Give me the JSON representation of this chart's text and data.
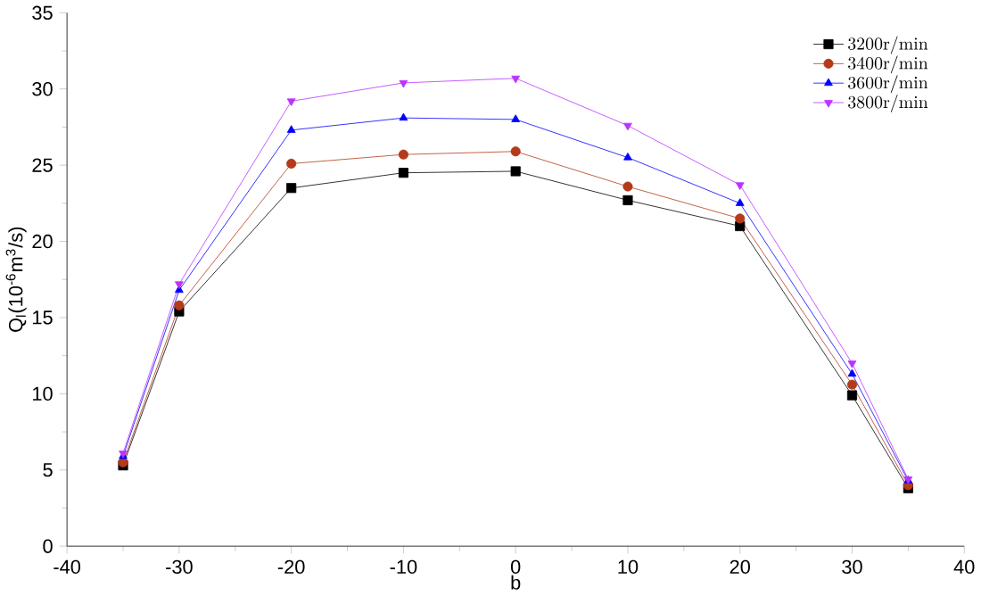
{
  "chart_data": {
    "type": "line",
    "xlabel": "b",
    "ylabel": "Q$_{l}$(10$^{-6}$m$^{3}$/s)",
    "x": [
      -35,
      -30,
      -20,
      -10,
      0,
      10,
      20,
      30,
      35
    ],
    "xlim": [
      -40,
      40
    ],
    "xticks": [
      -40,
      -30,
      -20,
      -10,
      0,
      10,
      20,
      30,
      40
    ],
    "ylim": [
      0,
      35
    ],
    "yticks": [
      0,
      5,
      10,
      15,
      20,
      25,
      30,
      35
    ],
    "grid": false,
    "legend": "top right",
    "series": [
      {
        "name": "3200r/min",
        "color": "#000000",
        "marker": "square",
        "values": [
          5.3,
          15.4,
          23.5,
          24.5,
          24.6,
          22.7,
          21.0,
          9.9,
          3.8
        ]
      },
      {
        "name": "3400r/min",
        "color": "#b33a1a",
        "marker": "circle",
        "values": [
          5.5,
          15.8,
          25.1,
          25.7,
          25.9,
          23.6,
          21.5,
          10.6,
          4.0
        ]
      },
      {
        "name": "3600r/min",
        "color": "#0000ff",
        "marker": "triangle",
        "values": [
          5.9,
          16.8,
          27.3,
          28.1,
          28.0,
          25.5,
          22.5,
          11.3,
          4.3
        ]
      },
      {
        "name": "3800r/min",
        "color": "#bb33ff",
        "marker": "triangle down",
        "values": [
          6.1,
          17.2,
          29.2,
          30.4,
          30.7,
          27.6,
          23.7,
          12.0,
          4.4
        ]
      }
    ]
  }
}
